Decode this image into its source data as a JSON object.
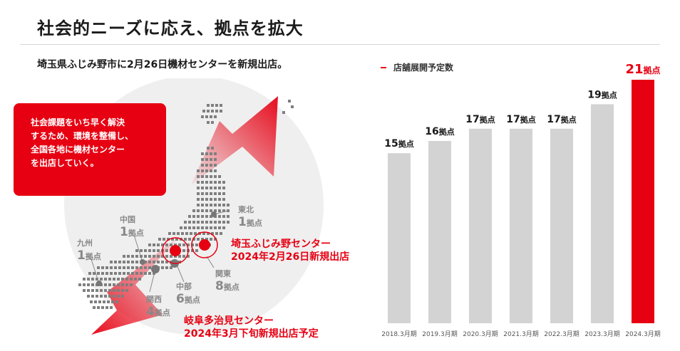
{
  "header": {
    "title": "社会的ニーズに応え、拠点を拡大",
    "subtitle": "埼玉県ふじみ野市に2月26日機材センターを新規出店。"
  },
  "callout": {
    "lines": [
      "社会課題をいち早く解決",
      "するため、環境を整備し、",
      "全国各地に機材センター",
      "を出店していく。"
    ]
  },
  "map": {
    "regions": [
      {
        "name": "東北",
        "count": "1",
        "unit": "拠点"
      },
      {
        "name": "中国",
        "count": "1",
        "unit": "拠点"
      },
      {
        "name": "九州",
        "count": "1",
        "unit": "拠点"
      },
      {
        "name": "中部",
        "count": "6",
        "unit": "拠点"
      },
      {
        "name": "関西",
        "count": "4",
        "unit": "拠点"
      },
      {
        "name": "関東",
        "count": "8",
        "unit": "拠点"
      }
    ],
    "new_centers": [
      {
        "name": "埼玉ふじみ野センター",
        "date": "2024年2月26日新規出店"
      },
      {
        "name": "岐阜多治見センター",
        "date": "2024年3月下旬新規出店予定"
      }
    ],
    "colors": {
      "accent": "#e60012",
      "dots": "#7f7f7f",
      "circle": "#efefef"
    }
  },
  "chart_data": {
    "type": "bar",
    "title": "店舗展開予定数",
    "categories": [
      "2018.3月期",
      "2019.3月期",
      "2020.3月期",
      "2021.3月期",
      "2022.3月期",
      "2023.3月期",
      "2024.3月期"
    ],
    "values": [
      15,
      16,
      17,
      17,
      17,
      19,
      21
    ],
    "value_unit": "拠点",
    "highlight_index": 6,
    "colors": {
      "bar": "#d3d3d3",
      "highlight": "#e60012",
      "highlight_label": "#e60012",
      "label": "#1a1a1a"
    },
    "xlabel": "",
    "ylabel": "",
    "grid": false
  }
}
